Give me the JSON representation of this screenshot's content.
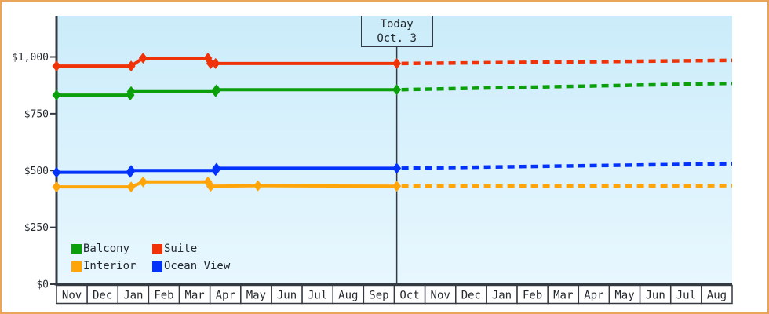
{
  "window": {
    "border_color": "#eba55b",
    "page_background": "#ffffff",
    "text_color": "#24292e",
    "axis_color": "#353a42"
  },
  "legend": {
    "position": "bottom-left",
    "items": [
      {
        "label": "Balcony",
        "color": "#0ba00b"
      },
      {
        "label": "Suite",
        "color": "#f03208"
      },
      {
        "label": "Interior",
        "color": "#ffa50a"
      },
      {
        "label": "Ocean View",
        "color": "#0332fa"
      }
    ]
  },
  "chart_data": {
    "type": "line",
    "title": "",
    "xlabel": "",
    "ylabel": "",
    "grid": false,
    "background": {
      "top": "#cbecfa",
      "bottom": "#e8f7fe"
    },
    "ylim": [
      0,
      1180
    ],
    "y_axis": {
      "ticks": [
        {
          "value": 0,
          "label": "$0"
        },
        {
          "value": 250,
          "label": "$250"
        },
        {
          "value": 500,
          "label": "$500"
        },
        {
          "value": 750,
          "label": "$750"
        },
        {
          "value": 1000,
          "label": "$1,000"
        }
      ]
    },
    "x_axis": {
      "labels": [
        "Nov",
        "Dec",
        "Jan",
        "Feb",
        "Mar",
        "Apr",
        "May",
        "Jun",
        "Jul",
        "Aug",
        "Sep",
        "Oct",
        "Nov",
        "Dec",
        "Jan",
        "Feb",
        "Mar",
        "Apr",
        "May",
        "Jun",
        "Jul",
        "Aug"
      ]
    },
    "today": {
      "line1": "Today",
      "line2": "Oct. 3",
      "month_position": 11.08
    },
    "series": [
      {
        "name": "Suite",
        "color": "#f03208",
        "solid_points": [
          [
            0,
            960
          ],
          [
            2.43,
            960
          ],
          [
            2.82,
            995
          ],
          [
            4.93,
            995
          ],
          [
            5.02,
            971
          ],
          [
            5.18,
            971
          ],
          [
            11.08,
            971
          ]
        ],
        "forecast_end": [
          22,
          985
        ]
      },
      {
        "name": "Balcony",
        "color": "#0ba00b",
        "solid_points": [
          [
            0,
            832
          ],
          [
            2.4,
            832
          ],
          [
            2.43,
            847
          ],
          [
            5.18,
            847
          ],
          [
            5.21,
            856
          ],
          [
            11.08,
            856
          ]
        ],
        "forecast_end": [
          22,
          884
        ]
      },
      {
        "name": "Ocean View",
        "color": "#0332fa",
        "solid_points": [
          [
            0,
            492
          ],
          [
            2.4,
            492
          ],
          [
            2.43,
            500
          ],
          [
            5.18,
            500
          ],
          [
            5.21,
            510
          ],
          [
            11.08,
            510
          ]
        ],
        "forecast_end": [
          22,
          530
        ]
      },
      {
        "name": "Interior",
        "color": "#ffa50a",
        "solid_points": [
          [
            0,
            428
          ],
          [
            2.43,
            428
          ],
          [
            2.82,
            450
          ],
          [
            4.93,
            450
          ],
          [
            5.02,
            431
          ],
          [
            6.56,
            433
          ],
          [
            11.08,
            431
          ]
        ],
        "forecast_end": [
          22,
          433
        ]
      }
    ]
  }
}
